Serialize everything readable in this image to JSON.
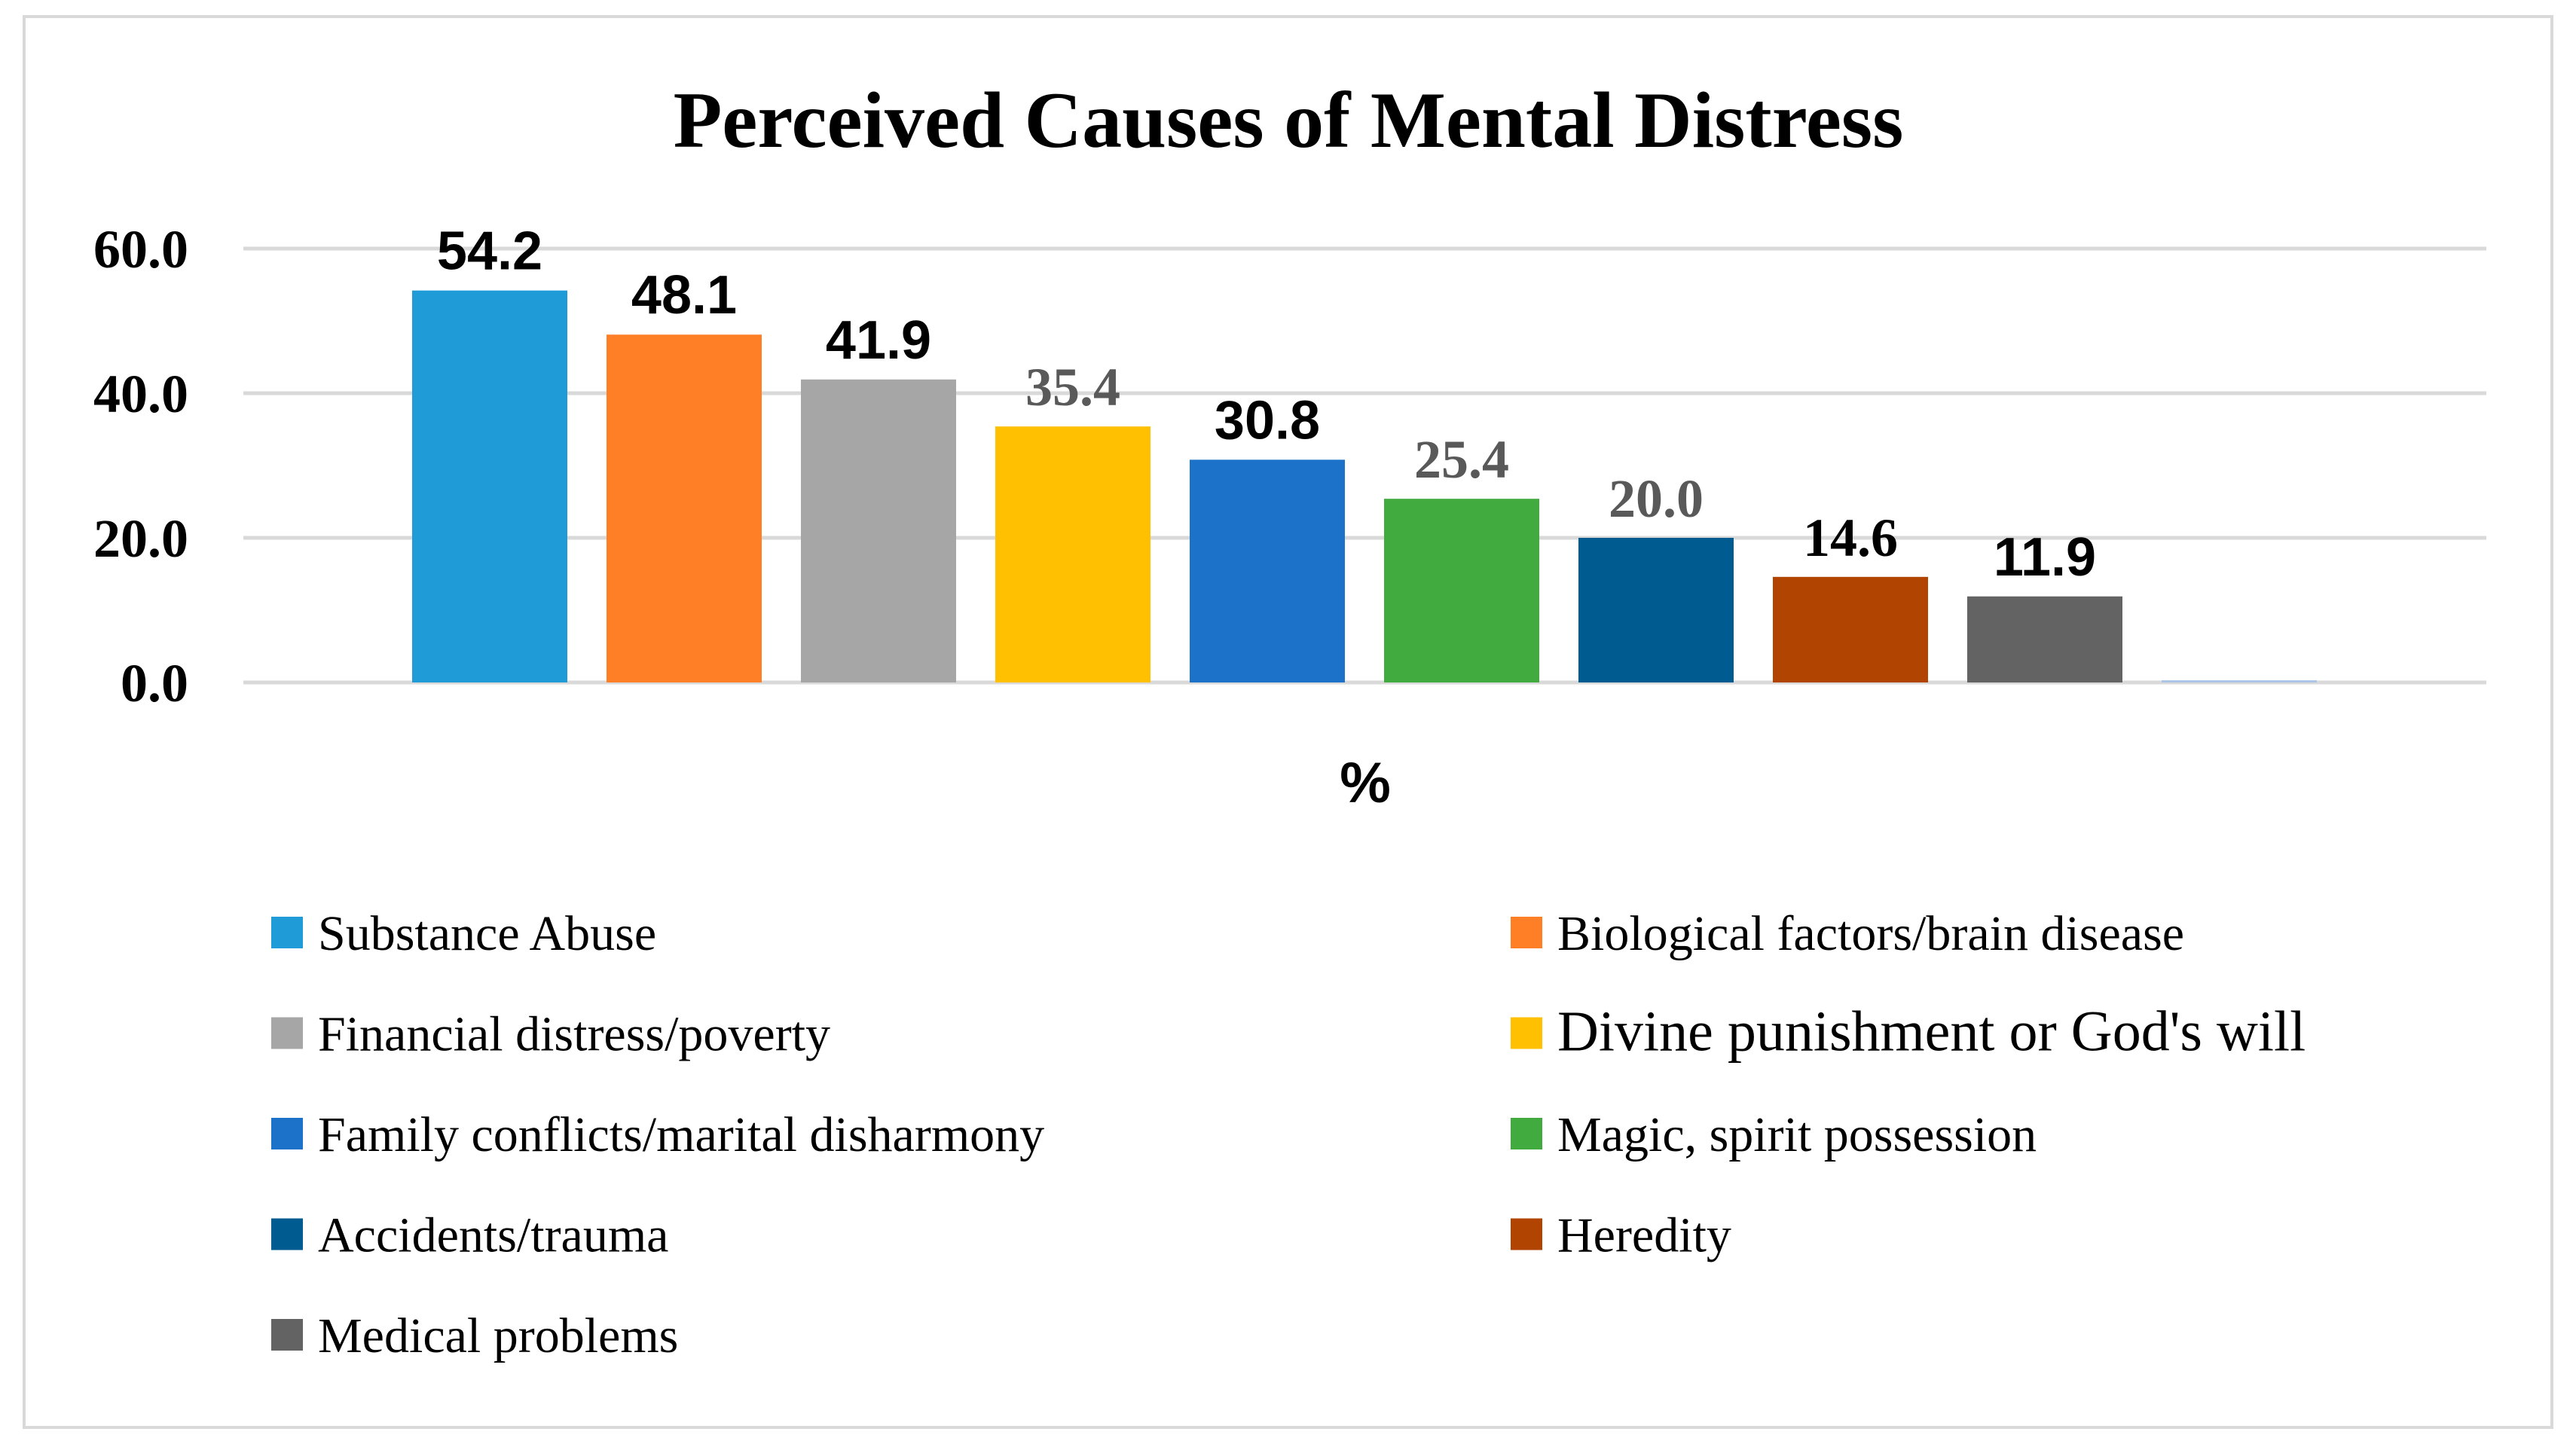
{
  "chart_data": {
    "type": "bar",
    "title": "Perceived Causes of Mental Distress",
    "xlabel": "%",
    "ylabel": "",
    "ylim": [
      0,
      60
    ],
    "yticks": [
      "0.0",
      "20.0",
      "40.0",
      "60.0"
    ],
    "grid": true,
    "legend_position": "bottom",
    "series": [
      {
        "name": "Substance Abuse",
        "value": 54.2,
        "label": "54.2",
        "color": "#1f9bd7",
        "label_color": "#000000",
        "label_font": "sans"
      },
      {
        "name": "Biological factors/brain disease",
        "value": 48.1,
        "label": "48.1",
        "color": "#fe7f26",
        "label_color": "#000000",
        "label_font": "sans"
      },
      {
        "name": "Financial distress/poverty",
        "value": 41.9,
        "label": "41.9",
        "color": "#a6a6a6",
        "label_color": "#000000",
        "label_font": "sans"
      },
      {
        "name": "Divine punishment or God's will",
        "value": 35.4,
        "label": "35.4",
        "color": "#fec000",
        "label_color": "#595959",
        "label_font": "serif"
      },
      {
        "name": "Family conflicts/marital disharmony",
        "value": 30.8,
        "label": "30.8",
        "color": "#1c72c8",
        "label_color": "#000000",
        "label_font": "sans"
      },
      {
        "name": "Magic, spirit possession",
        "value": 25.4,
        "label": "25.4",
        "color": "#41ab3f",
        "label_color": "#595959",
        "label_font": "serif"
      },
      {
        "name": "Accidents/trauma",
        "value": 20.0,
        "label": "20.0",
        "color": "#005b91",
        "label_color": "#595959",
        "label_font": "serif"
      },
      {
        "name": "Heredity",
        "value": 14.6,
        "label": "14.6",
        "color": "#b04400",
        "label_color": "#000000",
        "label_font": "serif"
      },
      {
        "name": "Medical problems",
        "value": 11.9,
        "label": "11.9",
        "color": "#636363",
        "label_color": "#000000",
        "label_font": "sans"
      },
      {
        "name": "",
        "value": 0.3,
        "label": "",
        "color": "#a9c4e6",
        "label_color": "#000000",
        "label_font": "sans"
      }
    ]
  }
}
